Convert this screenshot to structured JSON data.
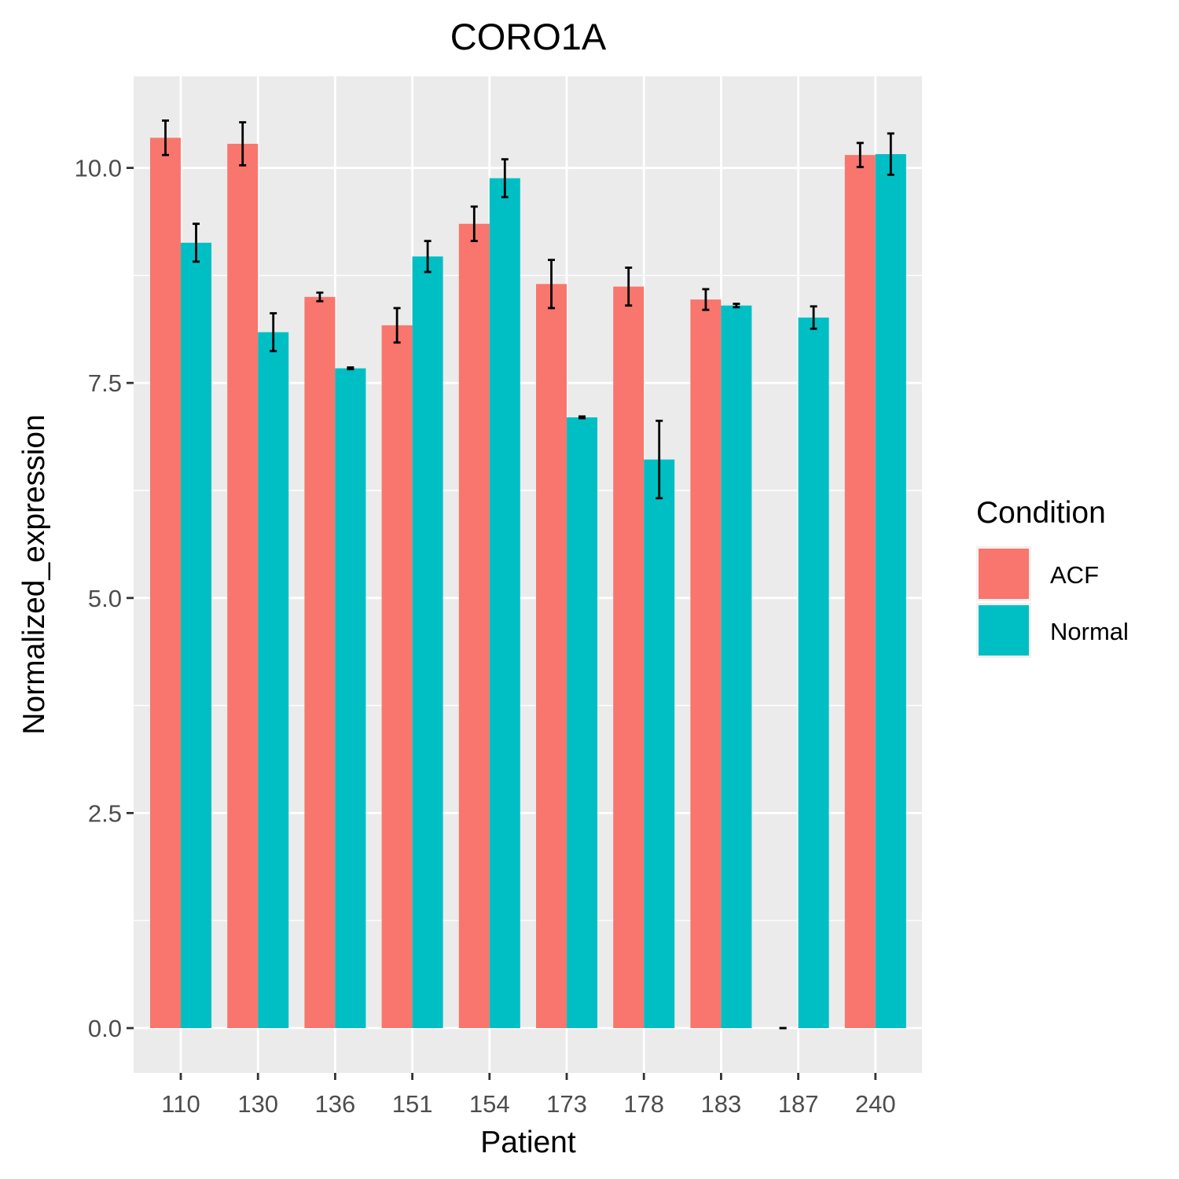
{
  "chart_data": {
    "type": "bar",
    "title": "CORO1A",
    "xlabel": "Patient",
    "ylabel": "Normalized_expression",
    "categories": [
      "110",
      "130",
      "136",
      "151",
      "154",
      "173",
      "178",
      "183",
      "187",
      "240"
    ],
    "ylim": [
      -0.5,
      11.2
    ],
    "yticks": [
      0.0,
      2.5,
      5.0,
      7.5,
      10.0
    ],
    "ytick_labels": [
      "0.0",
      "2.5",
      "5.0",
      "7.5",
      "10.0"
    ],
    "grid": true,
    "legend": {
      "title": "Condition",
      "placement": "right"
    },
    "series": [
      {
        "name": "ACF",
        "color": "#F8766D",
        "values": [
          10.35,
          10.28,
          8.5,
          8.17,
          9.35,
          8.65,
          8.62,
          8.47,
          0.0,
          10.15
        ],
        "error": [
          0.2,
          0.25,
          0.05,
          0.2,
          0.2,
          0.28,
          0.22,
          0.12,
          0.0,
          0.14
        ]
      },
      {
        "name": "Normal",
        "color": "#00BFC4",
        "values": [
          9.13,
          8.09,
          7.67,
          8.97,
          9.88,
          7.1,
          6.61,
          8.4,
          8.26,
          10.16
        ],
        "error": [
          0.22,
          0.22,
          0.01,
          0.18,
          0.22,
          0.01,
          0.45,
          0.02,
          0.13,
          0.24
        ]
      }
    ]
  }
}
